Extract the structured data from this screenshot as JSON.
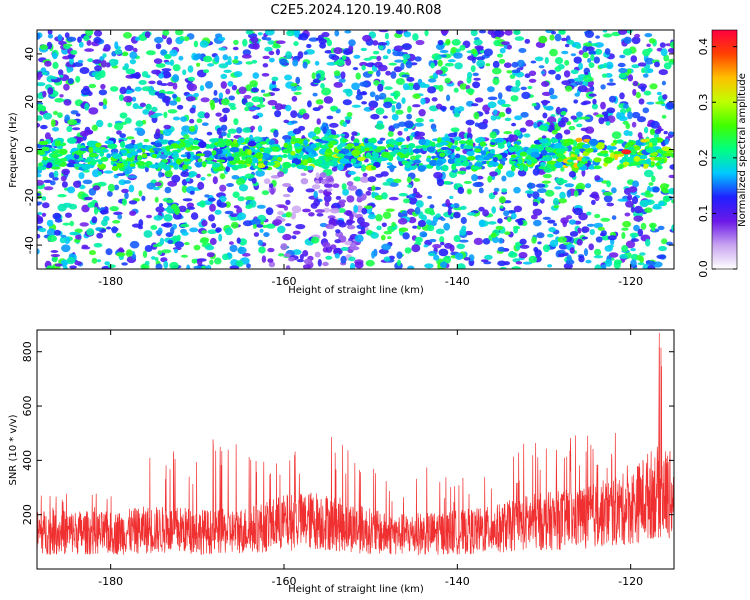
{
  "title": "C2E5.2024.120.19.40.R08",
  "chart_data": [
    {
      "type": "heatmap",
      "xlabel": "Height of straight line (km)",
      "ylabel": "Frequency (Hz)",
      "xlim": [
        -188.5,
        -115
      ],
      "ylim": [
        -50,
        50
      ],
      "xticks": [
        -180,
        -160,
        -140,
        -120
      ],
      "yticks": [
        -40,
        -20,
        0,
        20,
        40
      ],
      "colorbar": {
        "label": "Normalized spectral amplitude",
        "range": [
          0,
          0.43
        ],
        "ticks": [
          "0.0",
          "0.1",
          "0.2",
          "0.3",
          "0.4"
        ]
      },
      "signal_band_hz": [
        -8,
        4
      ],
      "peak_amplitude": 0.41,
      "peak_location_km": -120.5
    },
    {
      "type": "line",
      "xlabel": "Height of straight line (km)",
      "ylabel": "SNR (10 * v/v)",
      "xlim": [
        -188.5,
        -115
      ],
      "ylim": [
        0,
        880
      ],
      "xticks": [
        -180,
        -160,
        -140,
        -120
      ],
      "yticks": [
        200,
        400,
        600,
        800
      ],
      "series": [
        {
          "color": "#f03030",
          "x": [
            -188,
            -184,
            -180,
            -176,
            -172,
            -168,
            -164,
            -160,
            -156,
            -152,
            -148,
            -144,
            -140,
            -136,
            -132,
            -128,
            -124,
            -120,
            -118,
            -116.5,
            -115.5
          ],
          "typical": [
            150,
            150,
            145,
            160,
            160,
            150,
            160,
            190,
            200,
            170,
            140,
            145,
            150,
            160,
            190,
            200,
            220,
            250,
            300,
            320,
            300
          ],
          "peak": [
            290,
            280,
            280,
            470,
            450,
            480,
            460,
            420,
            540,
            430,
            350,
            380,
            330,
            370,
            480,
            500,
            490,
            510,
            660,
            870,
            820
          ]
        }
      ]
    }
  ]
}
